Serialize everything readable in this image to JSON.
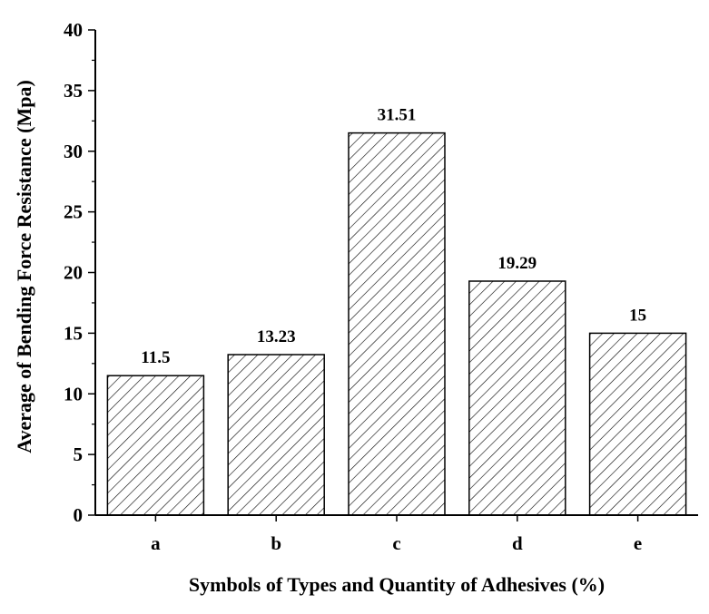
{
  "chart_data": {
    "type": "bar",
    "title": "",
    "xlabel": "Symbols of Types and Quantity of Adhesives (%)",
    "ylabel": "Average of Bending Force Resistance (Mpa)",
    "categories": [
      "a",
      "b",
      "c",
      "d",
      "e"
    ],
    "values": [
      11.5,
      13.23,
      31.51,
      19.29,
      15
    ],
    "data_labels": [
      "11.5",
      "13.23",
      "31.51",
      "19.29",
      "15"
    ],
    "ylim": [
      0,
      40
    ],
    "yticks": [
      0,
      5,
      10,
      15,
      20,
      25,
      30,
      35,
      40
    ],
    "bar_fill": "diagonal hatch",
    "grid": false,
    "legend": "none"
  },
  "colors": {
    "axis": "#000000",
    "bar_stroke": "#000000",
    "hatch": "#000000",
    "background": "#ffffff"
  }
}
